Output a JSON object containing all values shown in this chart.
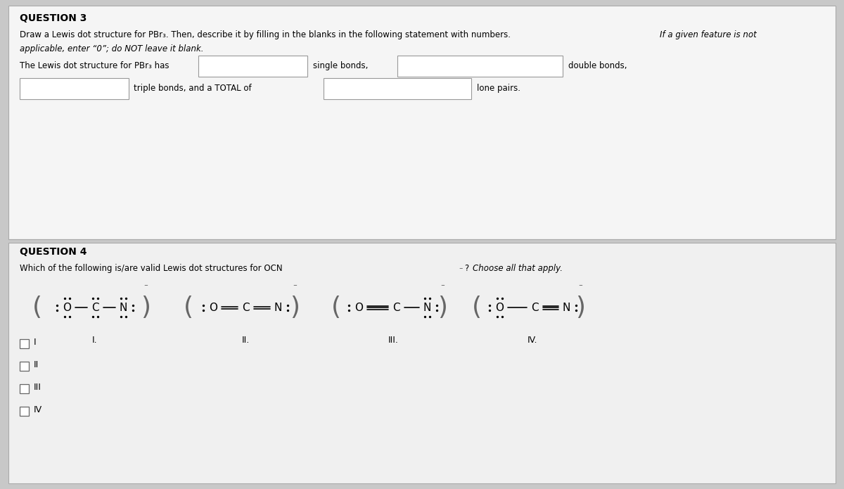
{
  "bg_color": "#d8d8d8",
  "panel_color": "#e8e8e8",
  "white": "#ffffff",
  "black": "#000000",
  "q3_title": "QUESTION 3",
  "q3_desc1": "Draw a Lewis dot structure for PBr",
  "q3_desc1_sub": "3",
  "q3_desc1b": ". Then, describe it by filling in the blanks in the following statement with numbers.",
  "q3_desc1_italic": "If a given feature is not",
  "q3_desc2_italic": "applicable, enter “0”; do NOT leave it blank.",
  "q3_sent": "The Lewis dot structure for PBr",
  "q3_sent_sub": "3",
  "q3_sent2": " has",
  "q3_single": "single bonds,",
  "q3_double": "double bonds,",
  "q3_triple": "triple bonds, and a TOTAL of",
  "q3_lone": "lone pairs.",
  "q4_title": "QUESTION 4",
  "q4_desc": "Which of the following is/are valid Lewis dot structures for OCN",
  "q4_desc_italic": "? Choose all that apply.",
  "struct_labels": [
    "I.",
    "II.",
    "III.",
    "IV."
  ],
  "checkbox_labels": [
    "I",
    "II",
    "III",
    "IV"
  ],
  "fig_bg": "#cccccc"
}
